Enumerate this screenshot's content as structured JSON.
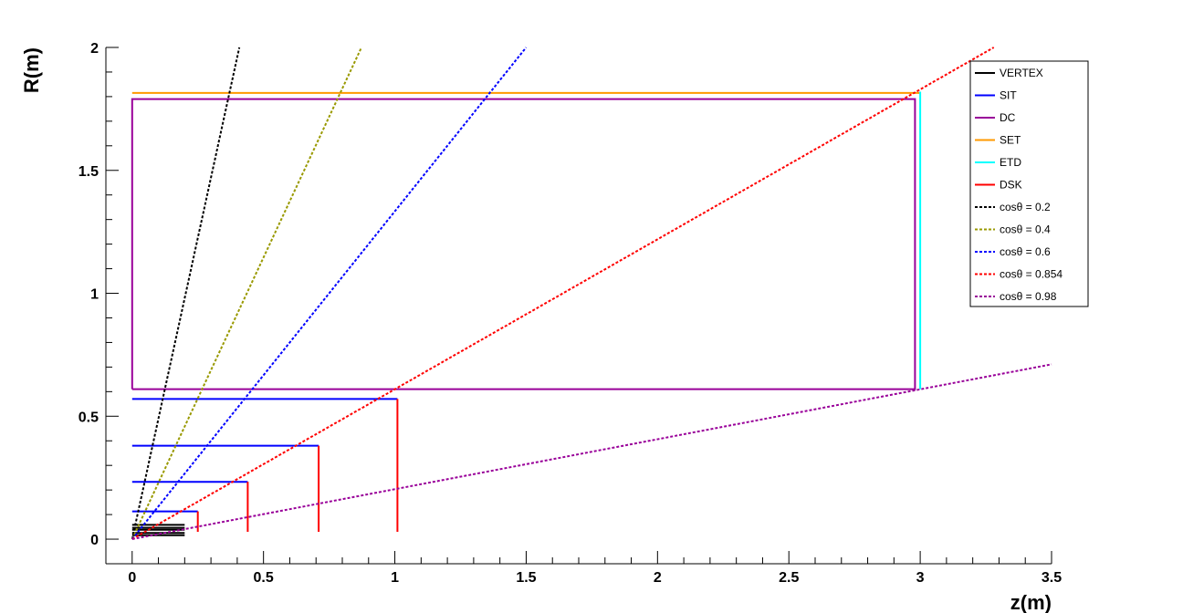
{
  "chart_data": {
    "type": "line",
    "xlabel": "z(m)",
    "ylabel": "R(m)",
    "xlim": [
      -0.1,
      3.5
    ],
    "ylim": [
      -0.1,
      2.0
    ],
    "x_ticks": [
      {
        "value": 0,
        "label": "0"
      },
      {
        "value": 0.5,
        "label": "0.5"
      },
      {
        "value": 1,
        "label": "1"
      },
      {
        "value": 1.5,
        "label": "1.5"
      },
      {
        "value": 2,
        "label": "2"
      },
      {
        "value": 2.5,
        "label": "2.5"
      },
      {
        "value": 3,
        "label": "3"
      },
      {
        "value": 3.5,
        "label": "3.5"
      }
    ],
    "y_ticks": [
      {
        "value": 0,
        "label": "0"
      },
      {
        "value": 0.5,
        "label": "0.5"
      },
      {
        "value": 1,
        "label": "1"
      },
      {
        "value": 1.5,
        "label": "1.5"
      },
      {
        "value": 2,
        "label": "2"
      }
    ],
    "grid": false,
    "legend_position": "top-right",
    "legend": [
      {
        "label": "VERTEX",
        "color": "#000000",
        "style": "solid"
      },
      {
        "label": "SIT",
        "color": "#0000ff",
        "style": "solid"
      },
      {
        "label": "DC",
        "color": "#990099",
        "style": "solid"
      },
      {
        "label": "SET",
        "color": "#ff9900",
        "style": "solid"
      },
      {
        "label": "ETD",
        "color": "#00ffff",
        "style": "solid"
      },
      {
        "label": "DSK",
        "color": "#ff0000",
        "style": "solid"
      },
      {
        "label": "cosθ = 0.2",
        "color": "#000000",
        "style": "dotted"
      },
      {
        "label": "cosθ = 0.4",
        "color": "#999900",
        "style": "dotted"
      },
      {
        "label": "cosθ = 0.6",
        "color": "#0000ff",
        "style": "dotted"
      },
      {
        "label": "cosθ = 0.854",
        "color": "#ff0000",
        "style": "dotted"
      },
      {
        "label": "cosθ = 0.98",
        "color": "#990099",
        "style": "dotted"
      }
    ],
    "series": [
      {
        "name": "VERTEX",
        "color": "#000000",
        "style": "solid",
        "segments": [
          [
            [
              0,
              0.016
            ],
            [
              0.2,
              0.016
            ]
          ],
          [
            [
              0,
              0.025
            ],
            [
              0.2,
              0.025
            ]
          ],
          [
            [
              0,
              0.038
            ],
            [
              0.2,
              0.038
            ]
          ],
          [
            [
              0,
              0.046
            ],
            [
              0.2,
              0.046
            ]
          ],
          [
            [
              0,
              0.058
            ],
            [
              0.2,
              0.058
            ]
          ]
        ]
      },
      {
        "name": "SIT",
        "color": "#0000ff",
        "style": "solid",
        "segments": [
          [
            [
              0,
              0.113
            ],
            [
              0.25,
              0.113
            ]
          ],
          [
            [
              0,
              0.233
            ],
            [
              0.44,
              0.233
            ]
          ],
          [
            [
              0,
              0.38
            ],
            [
              0.71,
              0.38
            ]
          ],
          [
            [
              0,
              0.57
            ],
            [
              1.01,
              0.57
            ]
          ]
        ]
      },
      {
        "name": "DC",
        "color": "#990099",
        "style": "solid",
        "segments": [
          [
            [
              0,
              0.61
            ],
            [
              2.98,
              0.61
            ],
            [
              2.98,
              1.79
            ],
            [
              0,
              1.79
            ],
            [
              0,
              0.61
            ]
          ]
        ]
      },
      {
        "name": "SET",
        "color": "#ff9900",
        "style": "solid",
        "segments": [
          [
            [
              0,
              1.815
            ],
            [
              3.0,
              1.815
            ]
          ]
        ]
      },
      {
        "name": "ETD",
        "color": "#00ffff",
        "style": "solid",
        "segments": [
          [
            [
              3.0,
              0.61
            ],
            [
              3.0,
              1.82
            ]
          ]
        ]
      },
      {
        "name": "DSK",
        "color": "#ff0000",
        "style": "solid",
        "segments": [
          [
            [
              0.25,
              0.03
            ],
            [
              0.25,
              0.113
            ]
          ],
          [
            [
              0.44,
              0.03
            ],
            [
              0.44,
              0.233
            ]
          ],
          [
            [
              0.71,
              0.03
            ],
            [
              0.71,
              0.38
            ]
          ],
          [
            [
              1.01,
              0.03
            ],
            [
              1.01,
              0.57
            ]
          ]
        ]
      },
      {
        "name": "cosθ = 0.2",
        "color": "#000000",
        "style": "dotted",
        "segments": [
          [
            [
              0,
              0
            ],
            [
              0.408,
              2.0
            ]
          ]
        ]
      },
      {
        "name": "cosθ = 0.4",
        "color": "#999900",
        "style": "dotted",
        "segments": [
          [
            [
              0,
              0
            ],
            [
              0.873,
              2.0
            ]
          ]
        ]
      },
      {
        "name": "cosθ = 0.6",
        "color": "#0000ff",
        "style": "dotted",
        "segments": [
          [
            [
              0,
              0
            ],
            [
              1.5,
              2.0
            ]
          ]
        ]
      },
      {
        "name": "cosθ = 0.854",
        "color": "#ff0000",
        "style": "dotted",
        "segments": [
          [
            [
              0,
              0
            ],
            [
              3.28,
              2.0
            ]
          ]
        ]
      },
      {
        "name": "cosθ = 0.98",
        "color": "#990099",
        "style": "dotted",
        "segments": [
          [
            [
              0,
              0
            ],
            [
              3.5,
              0.711
            ]
          ]
        ]
      }
    ]
  }
}
